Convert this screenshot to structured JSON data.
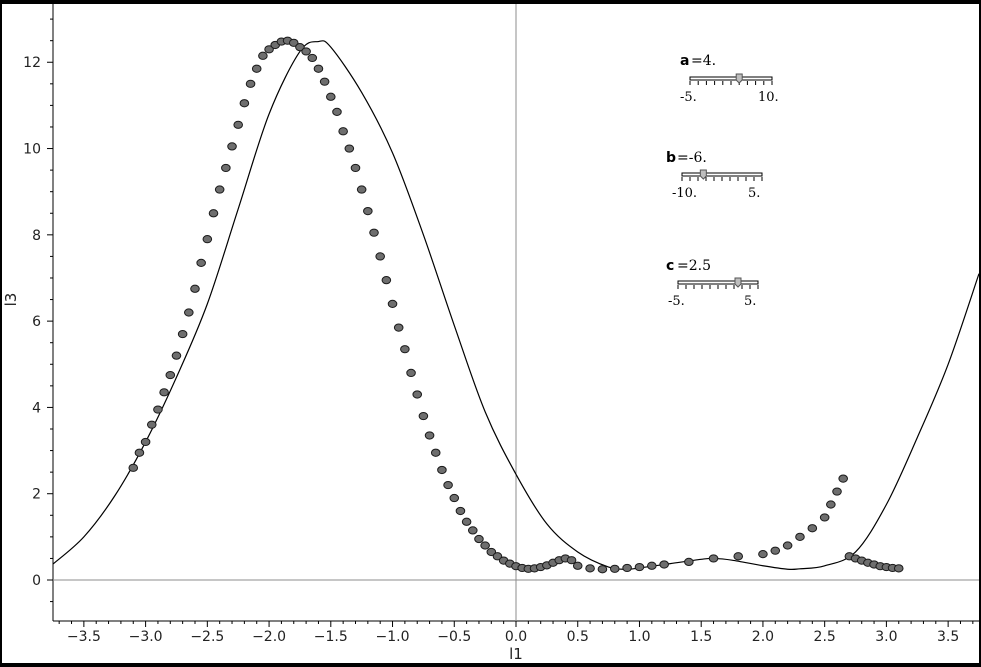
{
  "chart_data": {
    "type": "scatter",
    "xlabel": "l1",
    "ylabel": "l3",
    "xlim": [
      -3.75,
      3.75
    ],
    "ylim": [
      -0.95,
      13.35
    ],
    "x_ticks": [
      -3.5,
      -3.0,
      -2.5,
      -2.0,
      -1.5,
      -1.0,
      -0.5,
      0.0,
      0.5,
      1.0,
      1.5,
      2.0,
      2.5,
      3.0,
      3.5
    ],
    "x_tick_labels": [
      "−3.5",
      "−3.0",
      "−2.5",
      "−2.0",
      "−1.5",
      "−1.0",
      "−0.5",
      "0.0",
      "0.5",
      "1.0",
      "1.5",
      "2.0",
      "2.5",
      "3.0",
      "3.5"
    ],
    "y_ticks": [
      0,
      2,
      4,
      6,
      8,
      10,
      12
    ],
    "y_tick_labels": [
      "0",
      "2",
      "4",
      "6",
      "8",
      "10",
      "12"
    ],
    "grid": false,
    "curve": {
      "x": [
        -3.75,
        -3.5,
        -3.25,
        -3.0,
        -2.75,
        -2.5,
        -2.25,
        -2.0,
        -1.75,
        -1.6,
        -1.5,
        -1.25,
        -1.0,
        -0.75,
        -0.5,
        -0.25,
        0.0,
        0.25,
        0.5,
        0.75,
        0.9,
        1.0,
        1.25,
        1.5,
        1.6,
        1.75,
        2.0,
        2.2,
        2.3,
        2.5,
        2.75,
        3.0,
        3.25,
        3.5,
        3.75
      ],
      "y": [
        0.37,
        1.0,
        1.95,
        3.2,
        4.7,
        6.4,
        8.6,
        10.8,
        12.25,
        12.48,
        12.35,
        11.3,
        9.9,
        8.0,
        5.9,
        3.9,
        2.45,
        1.3,
        0.65,
        0.3,
        0.25,
        0.28,
        0.38,
        0.48,
        0.5,
        0.46,
        0.33,
        0.25,
        0.26,
        0.33,
        0.65,
        1.75,
        3.3,
        5.0,
        7.1
      ]
    },
    "points": {
      "x": [
        -3.1,
        -3.05,
        -3.0,
        -2.95,
        -2.9,
        -2.85,
        -2.8,
        -2.75,
        -2.7,
        -2.65,
        -2.6,
        -2.55,
        -2.5,
        -2.45,
        -2.4,
        -2.35,
        -2.3,
        -2.25,
        -2.2,
        -2.15,
        -2.1,
        -2.05,
        -2.0,
        -1.95,
        -1.9,
        -1.85,
        -1.8,
        -1.75,
        -1.7,
        -1.65,
        -1.6,
        -1.55,
        -1.5,
        -1.45,
        -1.4,
        -1.35,
        -1.3,
        -1.25,
        -1.2,
        -1.15,
        -1.1,
        -1.05,
        -1.0,
        -0.95,
        -0.9,
        -0.85,
        -0.8,
        -0.75,
        -0.7,
        -0.65,
        -0.6,
        -0.55,
        -0.5,
        -0.45,
        -0.4,
        -0.35,
        -0.3,
        -0.25,
        -0.2,
        -0.15,
        -0.1,
        -0.05,
        0.0,
        0.05,
        0.1,
        0.15,
        0.2,
        0.25,
        0.3,
        0.35,
        0.4,
        0.45,
        0.5,
        0.6,
        0.7,
        0.8,
        0.9,
        1.0,
        1.1,
        1.2,
        1.4,
        1.6,
        1.8,
        2.0,
        2.1,
        2.2,
        2.3,
        2.4,
        2.5,
        2.55,
        2.6,
        2.65,
        2.7,
        2.75,
        2.8,
        2.85,
        2.9,
        2.95,
        3.0,
        3.05,
        3.1
      ],
      "y": [
        2.6,
        2.95,
        3.2,
        3.6,
        3.95,
        4.35,
        4.75,
        5.2,
        5.7,
        6.2,
        6.75,
        7.35,
        7.9,
        8.5,
        9.05,
        9.55,
        10.05,
        10.55,
        11.05,
        11.5,
        11.85,
        12.15,
        12.3,
        12.4,
        12.48,
        12.5,
        12.45,
        12.35,
        12.25,
        12.1,
        11.85,
        11.55,
        11.2,
        10.85,
        10.4,
        10.0,
        9.55,
        9.05,
        8.55,
        8.05,
        7.5,
        6.95,
        6.4,
        5.85,
        5.35,
        4.8,
        4.3,
        3.8,
        3.35,
        2.95,
        2.55,
        2.2,
        1.9,
        1.6,
        1.35,
        1.15,
        0.95,
        0.8,
        0.65,
        0.55,
        0.45,
        0.38,
        0.32,
        0.28,
        0.26,
        0.27,
        0.3,
        0.34,
        0.4,
        0.46,
        0.5,
        0.46,
        0.33,
        0.27,
        0.25,
        0.26,
        0.28,
        0.3,
        0.33,
        0.36,
        0.42,
        0.5,
        0.55,
        0.6,
        0.68,
        0.8,
        1.0,
        1.2,
        1.45,
        1.75,
        2.05,
        2.35,
        0.55,
        0.5,
        0.45,
        0.4,
        0.36,
        0.32,
        0.3,
        0.28,
        0.27
      ]
    }
  },
  "sliders": [
    {
      "name": "a",
      "value": "4.",
      "min_label": "-5.",
      "max_label": "10.",
      "min": -5,
      "max": 10,
      "current": 4
    },
    {
      "name": "b",
      "value": "-6.",
      "min_label": "-10.",
      "max_label": "5.",
      "min": -10,
      "max": 5,
      "current": -6
    },
    {
      "name": "c",
      "value": "2.5",
      "min_label": "-5.",
      "max_label": "5.",
      "min": -5,
      "max": 5,
      "current": 2.5
    }
  ],
  "colors": {
    "curve": "#000000",
    "point_fill": "#6e6e6e",
    "point_stroke": "#1a1a1a",
    "axis": "#8c8c8c",
    "frame": "#000000"
  }
}
